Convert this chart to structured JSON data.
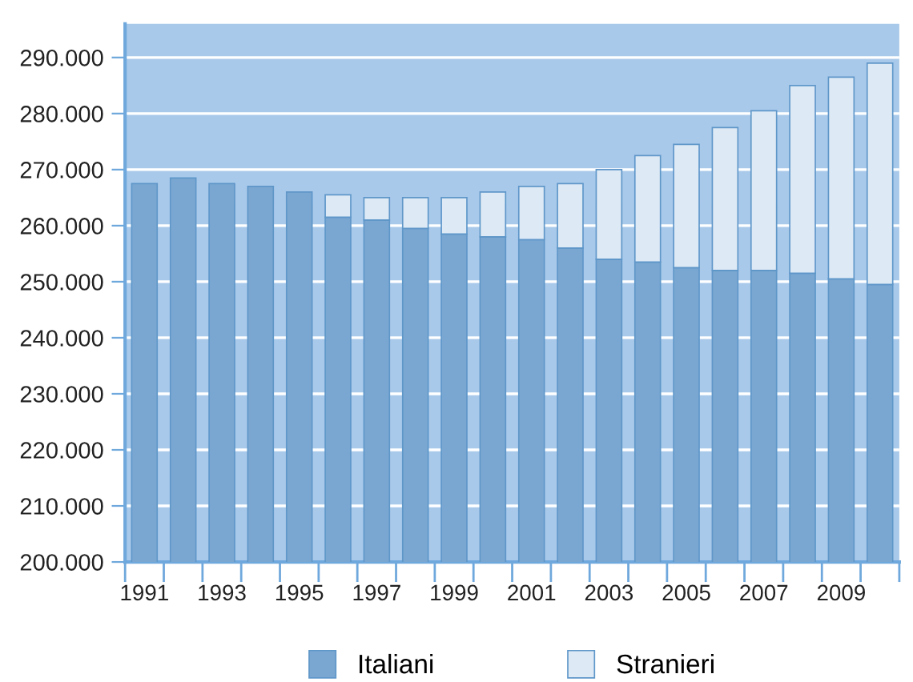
{
  "chart_data": {
    "type": "bar",
    "stacked": true,
    "categories": [
      "1991",
      null,
      "1993",
      null,
      "1995",
      null,
      "1997",
      null,
      "1999",
      null,
      "2001",
      null,
      "2003",
      null,
      "2005",
      null,
      "2007",
      null,
      "2009",
      null
    ],
    "series": [
      {
        "name": "Italiani",
        "color": "#7aa7d1",
        "values": [
          267500,
          268500,
          267500,
          267000,
          266000,
          261500,
          261000,
          259500,
          258500,
          258000,
          257500,
          256000,
          254000,
          253500,
          252500,
          252000,
          252000,
          251500,
          250500,
          249500
        ]
      },
      {
        "name": "Stranieri",
        "color": "#dde9f5",
        "values": [
          null,
          null,
          null,
          null,
          null,
          4000,
          4000,
          5500,
          6500,
          8000,
          9500,
          11500,
          16000,
          19000,
          22000,
          25500,
          28500,
          33500,
          36000,
          39500
        ],
        "base": [
          null,
          null,
          null,
          null,
          null,
          261500,
          261000,
          259500,
          258500,
          258000,
          257500,
          256000,
          254000,
          253500,
          252500,
          252000,
          252000,
          251500,
          250500,
          249500
        ]
      }
    ],
    "ylim": [
      200000,
      296000
    ],
    "yticks": [
      {
        "value": 200000,
        "label": "200.000"
      },
      {
        "value": 210000,
        "label": "210.000"
      },
      {
        "value": 220000,
        "label": "220.000"
      },
      {
        "value": 230000,
        "label": "230.000"
      },
      {
        "value": 240000,
        "label": "240.000"
      },
      {
        "value": 250000,
        "label": "250.000"
      },
      {
        "value": 260000,
        "label": "260.000"
      },
      {
        "value": 270000,
        "label": "270.000"
      },
      {
        "value": 280000,
        "label": "280.000"
      },
      {
        "value": 290000,
        "label": "290.000"
      }
    ],
    "grid": "y",
    "legend": "bottom"
  }
}
